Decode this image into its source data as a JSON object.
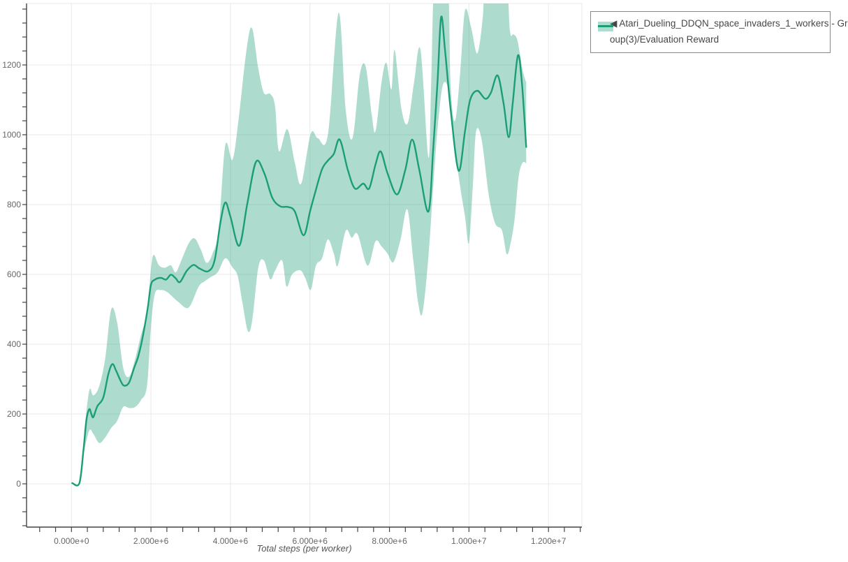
{
  "page": {
    "background": "#ffffff"
  },
  "style": {
    "grid_color": "#e9e9e9",
    "axis_color": "#444444",
    "tick_label_color": "#666666",
    "axis_title_color": "#555555",
    "legend_text_color": "#474747",
    "legend_border_color": "#888888",
    "line_color": "#1b9e77",
    "band_color": "rgba(27,158,119,0.36)"
  },
  "legend": {
    "label_full": "◀ Atari_Dueling_DDQN_space_invaders_1_workers - Group(3)/Evaluation Reward",
    "label_lines": [
      "◀ Atari_Dueling_DDQN_space_invaders_1_workers - Gr",
      "oup(3)/Evaluation Reward"
    ]
  },
  "chart_data": {
    "type": "line",
    "title": "",
    "xlabel": "Total steps (per worker)",
    "ylabel": "",
    "grid": true,
    "legend_position": "top-right-outside",
    "x_unit_note": "x values below are in millions of steps",
    "xlim_millions": [
      -1.13,
      12.84
    ],
    "ylim": [
      -124,
      1376
    ],
    "x_ticks": {
      "minor_step_millions": 0.4,
      "major": [
        {
          "value": 0,
          "label": "0.000e+0"
        },
        {
          "value": 2,
          "label": "2.000e+6"
        },
        {
          "value": 4,
          "label": "4.000e+6"
        },
        {
          "value": 6,
          "label": "6.000e+6"
        },
        {
          "value": 8,
          "label": "8.000e+6"
        },
        {
          "value": 10,
          "label": "1.000e+7"
        },
        {
          "value": 12,
          "label": "1.200e+7"
        }
      ]
    },
    "y_ticks": {
      "minor_step": 40,
      "major": [
        {
          "value": 0,
          "label": "0"
        },
        {
          "value": 200,
          "label": "200"
        },
        {
          "value": 400,
          "label": "400"
        },
        {
          "value": 600,
          "label": "600"
        },
        {
          "value": 800,
          "label": "800"
        },
        {
          "value": 1000,
          "label": "1000"
        },
        {
          "value": 1200,
          "label": "1200"
        }
      ]
    },
    "series": [
      {
        "name": "Atari_Dueling_DDQN_space_invaders_1_workers - Group(3)/Evaluation Reward",
        "line_color": "#1b9e77",
        "band_color": "rgba(27,158,119,0.36)",
        "mean": [
          [
            0.02,
            2
          ],
          [
            0.2,
            2
          ],
          [
            0.3,
            95
          ],
          [
            0.38,
            185
          ],
          [
            0.45,
            214
          ],
          [
            0.5,
            200
          ],
          [
            0.55,
            191
          ],
          [
            0.65,
            222
          ],
          [
            0.8,
            247
          ],
          [
            0.93,
            315
          ],
          [
            1.03,
            343
          ],
          [
            1.12,
            325
          ],
          [
            1.25,
            292
          ],
          [
            1.33,
            281
          ],
          [
            1.45,
            290
          ],
          [
            1.57,
            330
          ],
          [
            1.68,
            365
          ],
          [
            1.8,
            425
          ],
          [
            1.92,
            505
          ],
          [
            2.0,
            570
          ],
          [
            2.1,
            585
          ],
          [
            2.25,
            590
          ],
          [
            2.38,
            585
          ],
          [
            2.5,
            599
          ],
          [
            2.62,
            589
          ],
          [
            2.73,
            578
          ],
          [
            2.9,
            610
          ],
          [
            3.07,
            627
          ],
          [
            3.22,
            617
          ],
          [
            3.44,
            609
          ],
          [
            3.6,
            640
          ],
          [
            3.75,
            750
          ],
          [
            3.87,
            806
          ],
          [
            4.0,
            765
          ],
          [
            4.22,
            682
          ],
          [
            4.42,
            800
          ],
          [
            4.64,
            922
          ],
          [
            4.85,
            890
          ],
          [
            5.05,
            820
          ],
          [
            5.25,
            795
          ],
          [
            5.45,
            793
          ],
          [
            5.62,
            780
          ],
          [
            5.84,
            712
          ],
          [
            6.0,
            780
          ],
          [
            6.11,
            826
          ],
          [
            6.3,
            900
          ],
          [
            6.45,
            926
          ],
          [
            6.6,
            945
          ],
          [
            6.75,
            986
          ],
          [
            6.95,
            900
          ],
          [
            7.13,
            846
          ],
          [
            7.34,
            860
          ],
          [
            7.49,
            846
          ],
          [
            7.65,
            915
          ],
          [
            7.78,
            952
          ],
          [
            7.95,
            890
          ],
          [
            8.19,
            829
          ],
          [
            8.4,
            900
          ],
          [
            8.57,
            986
          ],
          [
            8.75,
            900
          ],
          [
            8.98,
            780
          ],
          [
            9.1,
            960
          ],
          [
            9.21,
            1153
          ],
          [
            9.3,
            1337
          ],
          [
            9.4,
            1240
          ],
          [
            9.55,
            1060
          ],
          [
            9.74,
            897
          ],
          [
            9.9,
            1010
          ],
          [
            10.03,
            1100
          ],
          [
            10.21,
            1126
          ],
          [
            10.41,
            1103
          ],
          [
            10.55,
            1120
          ],
          [
            10.72,
            1170
          ],
          [
            10.87,
            1090
          ],
          [
            11.0,
            993
          ],
          [
            11.1,
            1090
          ],
          [
            11.23,
            1227
          ],
          [
            11.33,
            1150
          ],
          [
            11.44,
            965
          ]
        ],
        "band_upper": [
          [
            0.32,
            150
          ],
          [
            0.45,
            268
          ],
          [
            0.55,
            253
          ],
          [
            0.7,
            280
          ],
          [
            0.85,
            360
          ],
          [
            1.0,
            500
          ],
          [
            1.15,
            462
          ],
          [
            1.3,
            333
          ],
          [
            1.45,
            307
          ],
          [
            1.6,
            357
          ],
          [
            1.75,
            427
          ],
          [
            1.9,
            490
          ],
          [
            2.0,
            615
          ],
          [
            2.07,
            656
          ],
          [
            2.2,
            626
          ],
          [
            2.35,
            619
          ],
          [
            2.5,
            626
          ],
          [
            2.62,
            606
          ],
          [
            2.75,
            636
          ],
          [
            2.95,
            689
          ],
          [
            3.1,
            703
          ],
          [
            3.25,
            672
          ],
          [
            3.4,
            633
          ],
          [
            3.55,
            660
          ],
          [
            3.7,
            726
          ],
          [
            3.87,
            970
          ],
          [
            4.05,
            928
          ],
          [
            4.2,
            1040
          ],
          [
            4.4,
            1240
          ],
          [
            4.54,
            1306
          ],
          [
            4.7,
            1190
          ],
          [
            4.84,
            1120
          ],
          [
            5.0,
            1117
          ],
          [
            5.12,
            1083
          ],
          [
            5.22,
            953
          ],
          [
            5.43,
            1016
          ],
          [
            5.62,
            920
          ],
          [
            5.78,
            860
          ],
          [
            6.02,
            1003
          ],
          [
            6.2,
            990
          ],
          [
            6.45,
            1000
          ],
          [
            6.72,
            1349
          ],
          [
            6.9,
            1070
          ],
          [
            7.07,
            990
          ],
          [
            7.25,
            1170
          ],
          [
            7.4,
            1196
          ],
          [
            7.55,
            1060
          ],
          [
            7.65,
            1010
          ],
          [
            7.8,
            1150
          ],
          [
            7.92,
            1206
          ],
          [
            8.05,
            1130
          ],
          [
            8.13,
            1243
          ],
          [
            8.3,
            1075
          ],
          [
            8.46,
            1033
          ],
          [
            8.62,
            1150
          ],
          [
            8.78,
            1243
          ],
          [
            8.98,
            935
          ],
          [
            9.05,
            1150
          ],
          [
            9.15,
            1480
          ],
          [
            9.45,
            1480
          ],
          [
            9.54,
            1139
          ],
          [
            9.65,
            1040
          ],
          [
            9.78,
            1180
          ],
          [
            9.9,
            1356
          ],
          [
            10.05,
            1310
          ],
          [
            10.21,
            1233
          ],
          [
            10.35,
            1340
          ],
          [
            10.43,
            1480
          ],
          [
            10.9,
            1480
          ],
          [
            11.03,
            1299
          ],
          [
            11.12,
            1288
          ],
          [
            11.22,
            1270
          ],
          [
            11.35,
            1185
          ],
          [
            11.44,
            1150
          ]
        ],
        "band_lower": [
          [
            0.32,
            95
          ],
          [
            0.45,
            153
          ],
          [
            0.55,
            143
          ],
          [
            0.7,
            117
          ],
          [
            0.85,
            133
          ],
          [
            1.0,
            160
          ],
          [
            1.15,
            180
          ],
          [
            1.3,
            220
          ],
          [
            1.45,
            217
          ],
          [
            1.6,
            220
          ],
          [
            1.75,
            240
          ],
          [
            1.9,
            280
          ],
          [
            2.0,
            450
          ],
          [
            2.1,
            545
          ],
          [
            2.25,
            555
          ],
          [
            2.4,
            550
          ],
          [
            2.55,
            535
          ],
          [
            2.7,
            520
          ],
          [
            2.95,
            505
          ],
          [
            3.2,
            565
          ],
          [
            3.35,
            580
          ],
          [
            3.5,
            592
          ],
          [
            3.68,
            606
          ],
          [
            3.87,
            646
          ],
          [
            4.05,
            620
          ],
          [
            4.18,
            596
          ],
          [
            4.3,
            520
          ],
          [
            4.44,
            437
          ],
          [
            4.55,
            470
          ],
          [
            4.7,
            619
          ],
          [
            4.84,
            640
          ],
          [
            5.0,
            586
          ],
          [
            5.12,
            610
          ],
          [
            5.3,
            640
          ],
          [
            5.41,
            565
          ],
          [
            5.55,
            600
          ],
          [
            5.75,
            612
          ],
          [
            5.88,
            590
          ],
          [
            6.02,
            556
          ],
          [
            6.15,
            625
          ],
          [
            6.3,
            645
          ],
          [
            6.45,
            700
          ],
          [
            6.6,
            660
          ],
          [
            6.7,
            625
          ],
          [
            6.9,
            725
          ],
          [
            7.05,
            705
          ],
          [
            7.2,
            715
          ],
          [
            7.45,
            625
          ],
          [
            7.65,
            695
          ],
          [
            7.8,
            680
          ],
          [
            7.95,
            660
          ],
          [
            8.1,
            635
          ],
          [
            8.28,
            700
          ],
          [
            8.45,
            786
          ],
          [
            8.6,
            640
          ],
          [
            8.72,
            520
          ],
          [
            8.83,
            490
          ],
          [
            8.98,
            650
          ],
          [
            9.1,
            850
          ],
          [
            9.22,
            1030
          ],
          [
            9.35,
            1145
          ],
          [
            9.5,
            1120
          ],
          [
            9.63,
            973
          ],
          [
            9.78,
            850
          ],
          [
            9.9,
            766
          ],
          [
            10.0,
            690
          ],
          [
            10.1,
            860
          ],
          [
            10.18,
            1010
          ],
          [
            10.32,
            985
          ],
          [
            10.5,
            826
          ],
          [
            10.66,
            746
          ],
          [
            10.83,
            726
          ],
          [
            10.95,
            658
          ],
          [
            11.05,
            690
          ],
          [
            11.15,
            760
          ],
          [
            11.25,
            880
          ],
          [
            11.35,
            920
          ],
          [
            11.44,
            918
          ]
        ]
      }
    ]
  }
}
